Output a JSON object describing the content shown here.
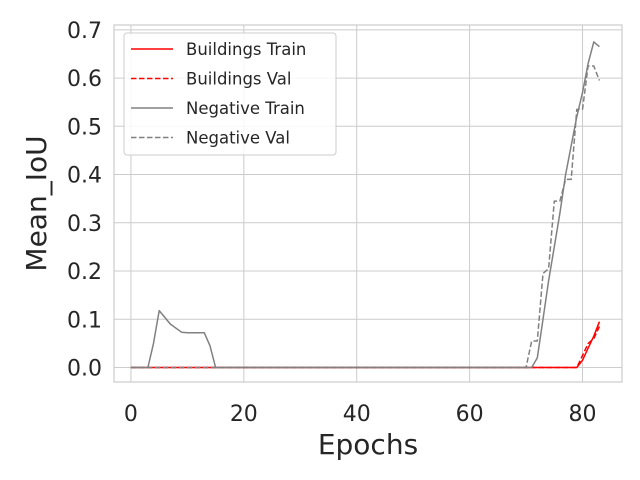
{
  "chart_data": {
    "type": "line",
    "xlabel": "Epochs",
    "ylabel": "Mean_IoU",
    "xlim": [
      -3,
      87
    ],
    "ylim": [
      -0.03,
      0.71
    ],
    "xticks": [
      0,
      20,
      40,
      60,
      80
    ],
    "yticks": [
      0.0,
      0.1,
      0.2,
      0.3,
      0.4,
      0.5,
      0.6,
      0.7
    ],
    "grid": true,
    "legend_position": "top-left",
    "series": [
      {
        "name": "Buildings Train",
        "color": "#ff0000",
        "dash": "solid",
        "x": [
          0,
          70,
          79,
          80,
          81,
          82,
          83
        ],
        "y": [
          0.0,
          0.0,
          0.0,
          0.015,
          0.04,
          0.065,
          0.095
        ]
      },
      {
        "name": "Buildings Val",
        "color": "#ff0000",
        "dash": "dashed",
        "x": [
          0,
          79,
          80,
          81,
          82,
          83
        ],
        "y": [
          0.0,
          0.0,
          0.025,
          0.05,
          0.06,
          0.085
        ]
      },
      {
        "name": "Negative Train",
        "color": "#808080",
        "dash": "solid",
        "x": [
          0,
          3,
          4,
          5,
          7,
          9,
          10,
          11,
          12,
          13,
          14,
          15,
          16,
          70,
          71,
          72,
          73,
          74,
          75,
          76,
          77,
          78,
          79,
          80,
          81,
          82,
          83
        ],
        "y": [
          0.0,
          0.0,
          0.05,
          0.118,
          0.09,
          0.073,
          0.072,
          0.072,
          0.072,
          0.072,
          0.045,
          0.0,
          0.0,
          0.0,
          0.0,
          0.02,
          0.1,
          0.18,
          0.25,
          0.32,
          0.4,
          0.46,
          0.52,
          0.57,
          0.63,
          0.675,
          0.665
        ]
      },
      {
        "name": "Negative Val",
        "color": "#808080",
        "dash": "dashed",
        "x": [
          0,
          69,
          70,
          71,
          72,
          73,
          74,
          75,
          76,
          77,
          78,
          79,
          80,
          81,
          82,
          83
        ],
        "y": [
          0.0,
          0.0,
          0.0,
          0.055,
          0.055,
          0.195,
          0.205,
          0.345,
          0.345,
          0.39,
          0.39,
          0.535,
          0.535,
          0.625,
          0.625,
          0.595
        ]
      }
    ]
  }
}
